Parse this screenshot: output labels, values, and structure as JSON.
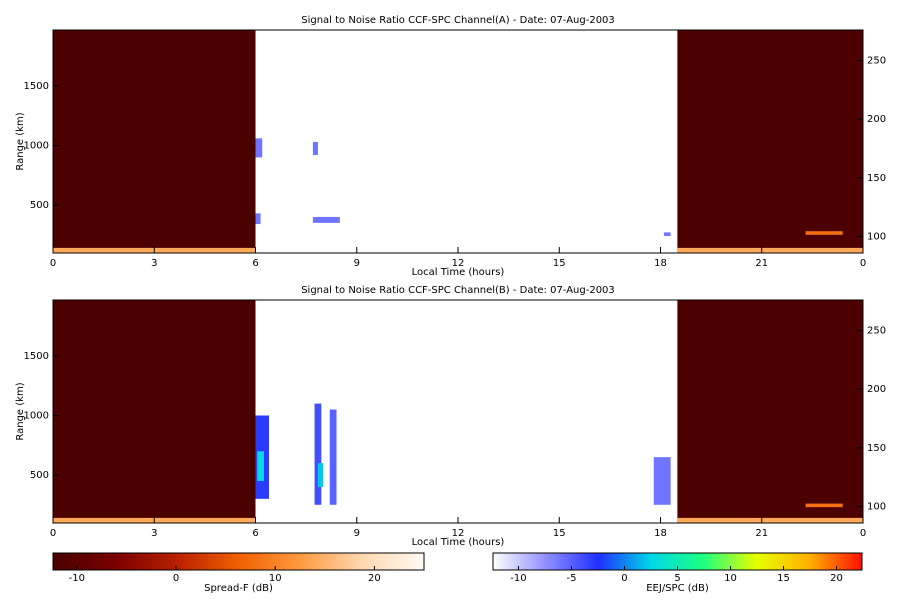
{
  "chart_data": [
    {
      "type": "heatmap",
      "title": "Signal to Noise Ratio CCF-SPC Channel(A) - Date: 07-Aug-2003",
      "xlabel": "Local Time (hours)",
      "ylabel": "Range (km)",
      "xlim": [
        0,
        24
      ],
      "xticks": [
        0,
        3,
        6,
        9,
        12,
        15,
        18,
        21,
        {
          "value": 24,
          "label": "0"
        }
      ],
      "ylim": [
        97,
        1970
      ],
      "yticks": [
        500,
        1000,
        1500
      ],
      "y2lim": [
        86,
        276
      ],
      "y2ticks": [
        100,
        150,
        200,
        250
      ],
      "cells": [
        {
          "x0": 0,
          "x1": 6,
          "y0": 97,
          "y1": 1970,
          "value": -12,
          "colorbar": 0
        },
        {
          "x0": 18.5,
          "x1": 24,
          "y0": 97,
          "y1": 1970,
          "value": -12,
          "colorbar": 0
        },
        {
          "x0": 0,
          "x1": 6,
          "y0": 97,
          "y1": 140,
          "value": 14,
          "colorbar": 0
        },
        {
          "x0": 18.5,
          "x1": 24,
          "y0": 97,
          "y1": 140,
          "value": 14,
          "colorbar": 0
        },
        {
          "x0": 22.3,
          "x1": 23.4,
          "y0": 250,
          "y1": 280,
          "value": 8,
          "colorbar": 0
        },
        {
          "x0": 6,
          "x1": 6.2,
          "y0": 900,
          "y1": 1060,
          "value": -6,
          "colorbar": 1
        },
        {
          "x0": 7.7,
          "x1": 7.85,
          "y0": 920,
          "y1": 1030,
          "value": -6,
          "colorbar": 1
        },
        {
          "x0": 6,
          "x1": 6.15,
          "y0": 340,
          "y1": 430,
          "value": -6,
          "colorbar": 1
        },
        {
          "x0": 7.7,
          "x1": 8.5,
          "y0": 350,
          "y1": 400,
          "value": -6,
          "colorbar": 1
        },
        {
          "x0": 18.1,
          "x1": 18.3,
          "y0": 240,
          "y1": 270,
          "value": -6,
          "colorbar": 1
        }
      ]
    },
    {
      "type": "heatmap",
      "title": "Signal to Noise Ratio CCF-SPC Channel(B) - Date: 07-Aug-2003",
      "xlabel": "Local Time (hours)",
      "ylabel": "Range (km)",
      "xlim": [
        0,
        24
      ],
      "xticks": [
        0,
        3,
        6,
        9,
        12,
        15,
        18,
        21,
        {
          "value": 24,
          "label": "0"
        }
      ],
      "ylim": [
        97,
        1970
      ],
      "yticks": [
        500,
        1000,
        1500
      ],
      "y2lim": [
        86,
        276
      ],
      "y2ticks": [
        100,
        150,
        200,
        250
      ],
      "cells": [
        {
          "x0": 0,
          "x1": 6,
          "y0": 97,
          "y1": 1970,
          "value": -12,
          "colorbar": 0
        },
        {
          "x0": 18.5,
          "x1": 24,
          "y0": 97,
          "y1": 1970,
          "value": -12,
          "colorbar": 0
        },
        {
          "x0": 0,
          "x1": 6,
          "y0": 97,
          "y1": 140,
          "value": 14,
          "colorbar": 0
        },
        {
          "x0": 18.5,
          "x1": 24,
          "y0": 97,
          "y1": 140,
          "value": 14,
          "colorbar": 0
        },
        {
          "x0": 22.3,
          "x1": 23.4,
          "y0": 230,
          "y1": 260,
          "value": 8,
          "colorbar": 0
        },
        {
          "x0": 6,
          "x1": 6.4,
          "y0": 300,
          "y1": 1000,
          "value": -3,
          "colorbar": 1
        },
        {
          "x0": 6.05,
          "x1": 6.25,
          "y0": 450,
          "y1": 700,
          "value": 3,
          "colorbar": 1
        },
        {
          "x0": 7.75,
          "x1": 7.95,
          "y0": 250,
          "y1": 1100,
          "value": -4,
          "colorbar": 1
        },
        {
          "x0": 8.2,
          "x1": 8.4,
          "y0": 250,
          "y1": 1050,
          "value": -5,
          "colorbar": 1
        },
        {
          "x0": 7.85,
          "x1": 8.0,
          "y0": 400,
          "y1": 600,
          "value": 2,
          "colorbar": 1
        },
        {
          "x0": 17.8,
          "x1": 18.3,
          "y0": 250,
          "y1": 650,
          "value": -6,
          "colorbar": 1
        }
      ]
    }
  ],
  "colorbars": [
    {
      "label": "Spread-F (dB)",
      "lim": [
        -12.4,
        25
      ],
      "ticks": [
        -10,
        0,
        10,
        20
      ],
      "colors": [
        "#4a0000",
        "#7a0000",
        "#b82000",
        "#f06000",
        "#ff9a40",
        "#ffd8b0",
        "#fffaf4"
      ]
    },
    {
      "label": "EEJ/SPC (dB)",
      "lim": [
        -12.4,
        22.4
      ],
      "ticks": [
        -10,
        -5,
        0,
        5,
        10,
        15,
        20
      ],
      "colors": [
        "#ffffff",
        "#9090ff",
        "#2030ff",
        "#00d8e8",
        "#20ff80",
        "#e8ff00",
        "#ffb000",
        "#ff1000"
      ]
    }
  ]
}
